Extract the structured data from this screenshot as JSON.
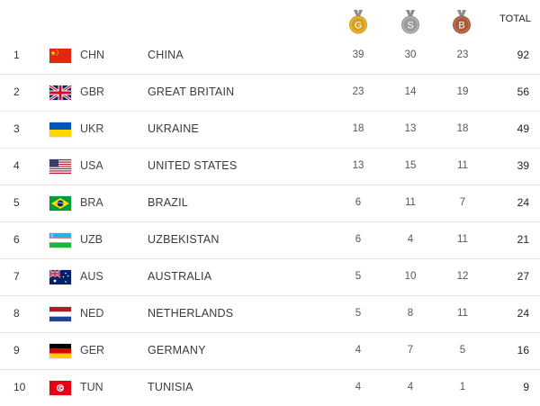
{
  "header": {
    "gold_letter": "G",
    "silver_letter": "S",
    "bronze_letter": "B",
    "total_label": "TOTAL"
  },
  "colors": {
    "gold": "#d99f1c",
    "silver": "#9a9a9a",
    "bronze": "#a65a3c",
    "row_divider": "#e4e4e4"
  },
  "rows": [
    {
      "rank": "1",
      "flag": "china-flag-icon",
      "code": "CHN",
      "name": "CHINA",
      "gold": "39",
      "silver": "30",
      "bronze": "23",
      "total": "92"
    },
    {
      "rank": "2",
      "flag": "great-britain-flag-icon",
      "code": "GBR",
      "name": "GREAT BRITAIN",
      "gold": "23",
      "silver": "14",
      "bronze": "19",
      "total": "56"
    },
    {
      "rank": "3",
      "flag": "ukraine-flag-icon",
      "code": "UKR",
      "name": "UKRAINE",
      "gold": "18",
      "silver": "13",
      "bronze": "18",
      "total": "49"
    },
    {
      "rank": "4",
      "flag": "united-states-flag-icon",
      "code": "USA",
      "name": "UNITED STATES",
      "gold": "13",
      "silver": "15",
      "bronze": "11",
      "total": "39"
    },
    {
      "rank": "5",
      "flag": "brazil-flag-icon",
      "code": "BRA",
      "name": "BRAZIL",
      "gold": "6",
      "silver": "11",
      "bronze": "7",
      "total": "24"
    },
    {
      "rank": "6",
      "flag": "uzbekistan-flag-icon",
      "code": "UZB",
      "name": "UZBEKISTAN",
      "gold": "6",
      "silver": "4",
      "bronze": "11",
      "total": "21"
    },
    {
      "rank": "7",
      "flag": "australia-flag-icon",
      "code": "AUS",
      "name": "AUSTRALIA",
      "gold": "5",
      "silver": "10",
      "bronze": "12",
      "total": "27"
    },
    {
      "rank": "8",
      "flag": "netherlands-flag-icon",
      "code": "NED",
      "name": "NETHERLANDS",
      "gold": "5",
      "silver": "8",
      "bronze": "11",
      "total": "24"
    },
    {
      "rank": "9",
      "flag": "germany-flag-icon",
      "code": "GER",
      "name": "GERMANY",
      "gold": "4",
      "silver": "7",
      "bronze": "5",
      "total": "16"
    },
    {
      "rank": "10",
      "flag": "tunisia-flag-icon",
      "code": "TUN",
      "name": "TUNISIA",
      "gold": "4",
      "silver": "4",
      "bronze": "1",
      "total": "9"
    }
  ]
}
